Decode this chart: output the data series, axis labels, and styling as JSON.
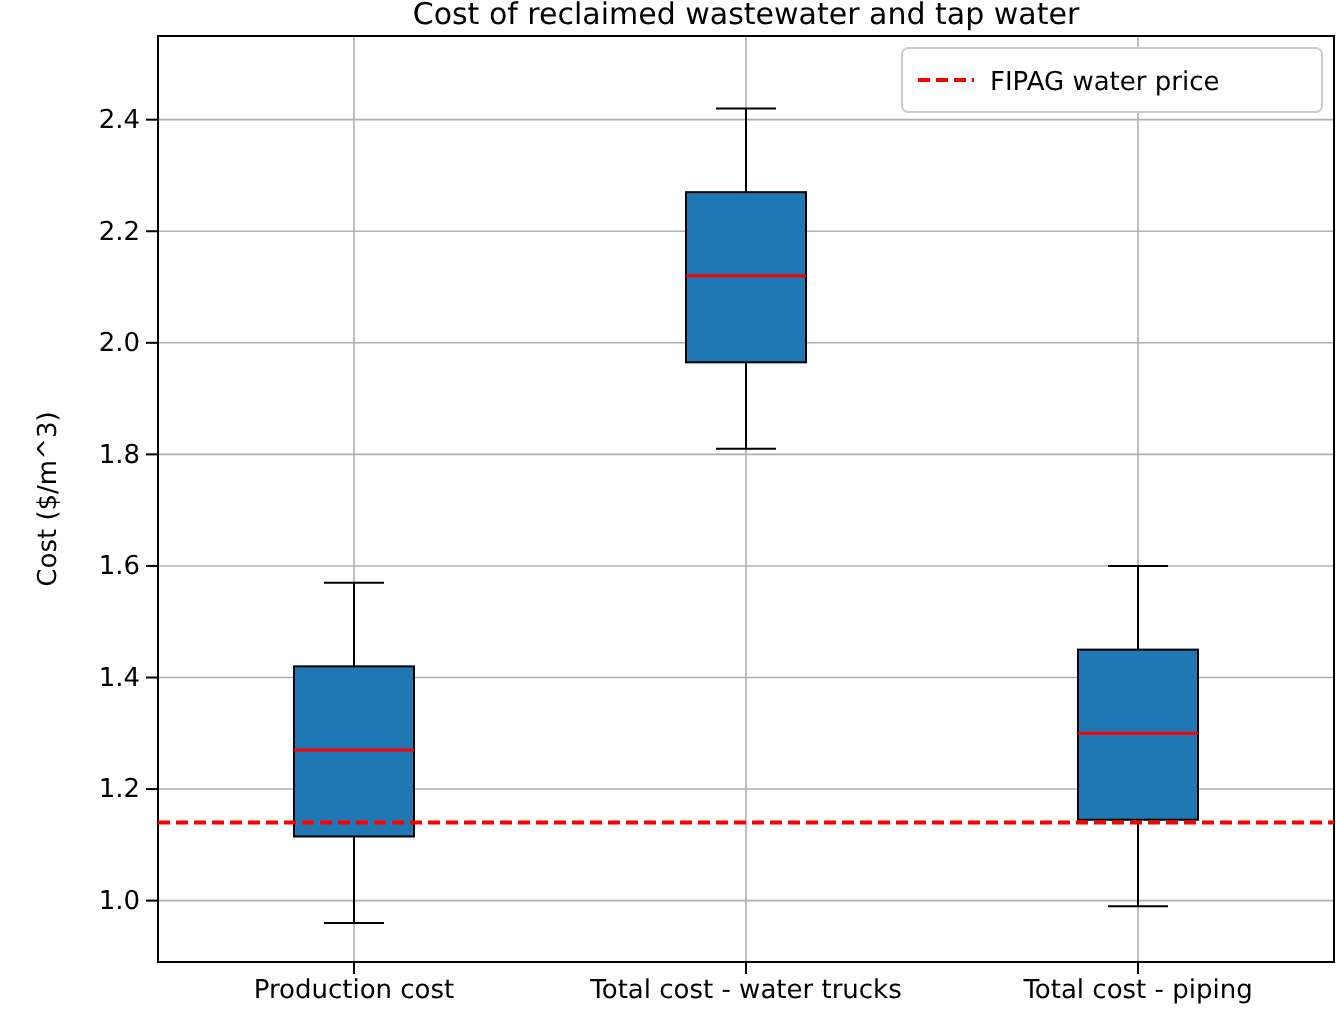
{
  "chart_data": {
    "type": "box",
    "title": "Cost of reclaimed wastewater and tap water",
    "ylabel": "Cost ($/m^3)",
    "categories": [
      "Production cost",
      "Total cost - water trucks",
      "Total cost - piping"
    ],
    "series": [
      {
        "color": "#1f77b4",
        "boxes": [
          {
            "low": 0.96,
            "q1": 1.115,
            "median": 1.27,
            "q3": 1.42,
            "high": 1.57
          },
          {
            "low": 1.81,
            "q1": 1.965,
            "median": 2.12,
            "q3": 2.27,
            "high": 2.42
          },
          {
            "low": 0.99,
            "q1": 1.145,
            "median": 1.3,
            "q3": 1.45,
            "high": 1.6
          }
        ]
      }
    ],
    "ylim": [
      0.89,
      2.55
    ],
    "yticks": [
      {
        "value": 1.0,
        "label": "1.0"
      },
      {
        "value": 1.2,
        "label": "1.2"
      },
      {
        "value": 1.4,
        "label": "1.4"
      },
      {
        "value": 1.6,
        "label": "1.6"
      },
      {
        "value": 1.8,
        "label": "1.8"
      },
      {
        "value": 2.0,
        "label": "2.0"
      },
      {
        "value": 2.2,
        "label": "2.2"
      },
      {
        "value": 2.4,
        "label": "2.4"
      }
    ],
    "ref_lines": [
      {
        "axis": "y",
        "value": 1.14,
        "label": "FIPAG water price",
        "color": "#ff0000",
        "line_style": "dashed"
      }
    ],
    "grid": true,
    "legend": "top right"
  }
}
